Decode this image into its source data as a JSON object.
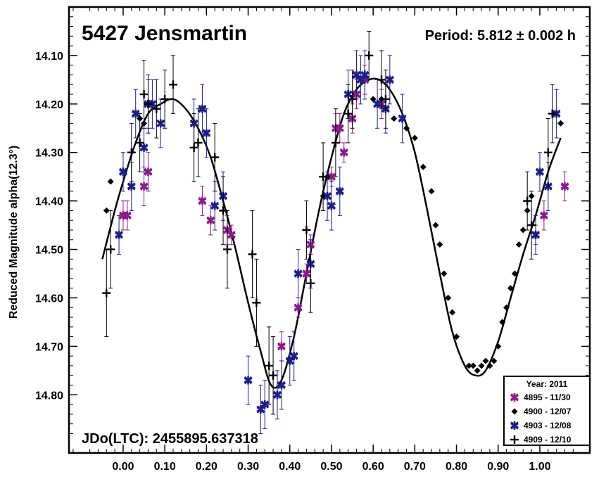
{
  "chart_data": {
    "type": "scatter",
    "title": "5427 Jensmartin",
    "period_label": "Period: 5.812 ± 0.002 h",
    "jdo_label": "JDo(LTC): 2455895.637318",
    "ylabel": "Reduced Magnitude alpha(12.3°)",
    "xlabel": "",
    "xlim": [
      -0.13,
      1.12
    ],
    "ylim": [
      14.0,
      14.92
    ],
    "y_inverted": true,
    "x_ticks": [
      "0.00",
      "0.10",
      "0.20",
      "0.30",
      "0.40",
      "0.50",
      "0.60",
      "0.70",
      "0.80",
      "0.90",
      "1.00"
    ],
    "y_ticks": [
      "14.10",
      "14.20",
      "14.30",
      "14.40",
      "14.50",
      "14.60",
      "14.70",
      "14.80"
    ],
    "legend": {
      "title": "Year: 2011",
      "placement": "bottom-right"
    },
    "fit_curve": {
      "x": [
        -0.05,
        -0.02,
        0.0,
        0.03,
        0.06,
        0.09,
        0.12,
        0.15,
        0.18,
        0.21,
        0.24,
        0.27,
        0.3,
        0.33,
        0.355,
        0.38,
        0.41,
        0.44,
        0.47,
        0.5,
        0.53,
        0.56,
        0.59,
        0.615,
        0.64,
        0.67,
        0.7,
        0.73,
        0.76,
        0.79,
        0.82,
        0.845,
        0.87,
        0.9,
        0.93,
        0.96,
        0.99,
        1.02,
        1.05
      ],
      "y": [
        14.52,
        14.42,
        14.36,
        14.28,
        14.22,
        14.2,
        14.19,
        14.21,
        14.25,
        14.31,
        14.4,
        14.5,
        14.61,
        14.71,
        14.78,
        14.77,
        14.68,
        14.55,
        14.42,
        14.31,
        14.22,
        14.17,
        14.15,
        14.15,
        14.17,
        14.22,
        14.3,
        14.42,
        14.55,
        14.67,
        14.74,
        14.76,
        14.75,
        14.69,
        14.6,
        14.51,
        14.43,
        14.34,
        14.27
      ]
    },
    "series": [
      {
        "name": "4895 - 11/30",
        "marker": "asterisk",
        "color": "#8b1a89",
        "x": [
          0.0,
          0.01,
          0.05,
          0.06,
          0.19,
          0.21,
          0.25,
          0.26,
          0.38,
          0.42,
          0.44,
          0.45,
          0.5,
          0.51,
          0.52,
          0.53,
          0.55,
          0.56,
          0.58,
          0.62,
          0.99,
          1.01,
          1.06
        ],
        "y": [
          14.43,
          14.43,
          14.37,
          14.34,
          14.4,
          14.44,
          14.46,
          14.47,
          14.7,
          14.62,
          14.55,
          14.49,
          14.35,
          14.25,
          14.25,
          14.3,
          14.23,
          14.18,
          14.15,
          14.2,
          14.47,
          14.43,
          14.37
        ],
        "err": [
          0.03,
          0.03,
          0.04,
          0.04,
          0.03,
          0.03,
          0.03,
          0.02,
          0.03,
          0.02,
          0.02,
          0.02,
          0.02,
          0.03,
          0.03,
          0.02,
          0.03,
          0.03,
          0.03,
          0.03,
          0.02,
          0.03,
          0.03
        ]
      },
      {
        "name": "4900 - 12/07",
        "marker": "diamond",
        "color": "#000000",
        "x": [
          -0.04,
          -0.03,
          0.04,
          0.05,
          0.48,
          0.49,
          0.6,
          0.62,
          0.63,
          0.65,
          0.68,
          0.7,
          0.72,
          0.74,
          0.75,
          0.76,
          0.77,
          0.78,
          0.79,
          0.8,
          0.83,
          0.84,
          0.85,
          0.86,
          0.87,
          0.88,
          0.89,
          0.9,
          0.91,
          0.92,
          0.93,
          0.94,
          0.95,
          0.96,
          0.97,
          0.98,
          1.05
        ],
        "y": [
          14.42,
          14.36,
          14.23,
          14.24,
          14.39,
          14.35,
          14.19,
          14.19,
          14.21,
          14.23,
          14.25,
          14.27,
          14.33,
          14.38,
          14.45,
          14.49,
          14.55,
          14.6,
          14.63,
          14.68,
          14.74,
          14.74,
          14.75,
          14.74,
          14.73,
          14.74,
          14.73,
          14.7,
          14.65,
          14.62,
          14.58,
          14.55,
          14.49,
          14.46,
          14.42,
          14.39,
          14.24
        ],
        "err": [
          0.01,
          0.01,
          0.01,
          0.01,
          0.01,
          0.01,
          0.01,
          0.01,
          0.01,
          0.01,
          0.01,
          0.01,
          0.01,
          0.01,
          0.01,
          0.01,
          0.01,
          0.01,
          0.01,
          0.01,
          0.01,
          0.01,
          0.01,
          0.01,
          0.01,
          0.01,
          0.01,
          0.01,
          0.01,
          0.01,
          0.01,
          0.01,
          0.01,
          0.01,
          0.01,
          0.01,
          0.01
        ]
      },
      {
        "name": "4903 - 12/08",
        "marker": "asterisk",
        "color": "#1c1c8f",
        "x": [
          -0.01,
          0.0,
          0.02,
          0.03,
          0.05,
          0.06,
          0.07,
          0.09,
          0.17,
          0.19,
          0.2,
          0.22,
          0.24,
          0.3,
          0.33,
          0.34,
          0.37,
          0.38,
          0.4,
          0.41,
          0.42,
          0.45,
          0.49,
          0.5,
          0.52,
          0.54,
          0.56,
          0.57,
          0.58,
          0.61,
          0.63,
          0.64,
          0.67,
          0.99,
          1.0,
          1.02,
          1.04
        ],
        "y": [
          14.47,
          14.34,
          14.37,
          14.22,
          14.29,
          14.2,
          14.2,
          14.24,
          14.24,
          14.21,
          14.26,
          14.41,
          14.39,
          14.77,
          14.83,
          14.82,
          14.8,
          14.78,
          14.73,
          14.72,
          14.55,
          14.53,
          14.39,
          14.41,
          14.38,
          14.18,
          14.14,
          14.15,
          14.14,
          14.2,
          14.21,
          14.15,
          14.23,
          14.47,
          14.34,
          14.37,
          14.22
        ],
        "err": [
          0.04,
          0.04,
          0.05,
          0.05,
          0.05,
          0.05,
          0.05,
          0.05,
          0.05,
          0.05,
          0.05,
          0.05,
          0.05,
          0.05,
          0.05,
          0.05,
          0.05,
          0.05,
          0.05,
          0.05,
          0.05,
          0.05,
          0.05,
          0.05,
          0.05,
          0.05,
          0.05,
          0.05,
          0.05,
          0.05,
          0.05,
          0.05,
          0.05,
          0.04,
          0.04,
          0.05,
          0.05
        ]
      },
      {
        "name": "4909 - 12/10",
        "marker": "cross",
        "color": "#000000",
        "x": [
          -0.04,
          -0.03,
          0.02,
          0.04,
          0.05,
          0.06,
          0.08,
          0.1,
          0.12,
          0.17,
          0.18,
          0.22,
          0.24,
          0.25,
          0.31,
          0.32,
          0.35,
          0.36,
          0.44,
          0.45,
          0.48,
          0.51,
          0.54,
          0.55,
          0.59,
          0.62,
          0.63,
          0.97,
          0.98,
          1.02,
          1.03
        ],
        "y": [
          14.59,
          14.5,
          14.3,
          14.28,
          14.18,
          14.2,
          14.21,
          14.19,
          14.16,
          14.29,
          14.28,
          14.31,
          14.42,
          14.5,
          14.51,
          14.61,
          14.74,
          14.76,
          14.46,
          14.57,
          14.35,
          14.28,
          14.22,
          14.19,
          14.1,
          14.15,
          14.19,
          14.4,
          14.45,
          14.3,
          14.22
        ],
        "err": [
          0.09,
          0.08,
          0.06,
          0.06,
          0.07,
          0.06,
          0.06,
          0.06,
          0.06,
          0.07,
          0.07,
          0.07,
          0.07,
          0.08,
          0.09,
          0.09,
          0.08,
          0.08,
          0.06,
          0.06,
          0.07,
          0.07,
          0.06,
          0.06,
          0.05,
          0.06,
          0.06,
          0.06,
          0.07,
          0.07,
          0.06
        ]
      }
    ]
  }
}
